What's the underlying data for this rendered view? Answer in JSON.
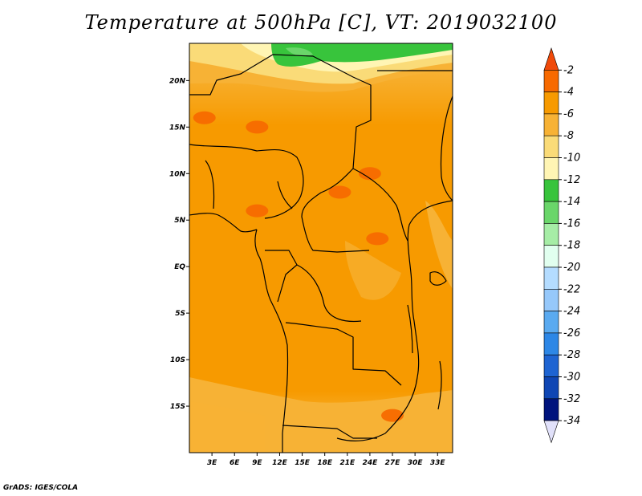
{
  "title": "Temperature at 500hPa [C], VT: 2019032100",
  "credit": "GrADS: IGES/COLA",
  "map": {
    "lat_range": [
      -20,
      24
    ],
    "lon_range": [
      0,
      35
    ],
    "lat_ticks": [
      {
        "value": 20,
        "label": "20N"
      },
      {
        "value": 15,
        "label": "15N"
      },
      {
        "value": 10,
        "label": "10N"
      },
      {
        "value": 5,
        "label": "5N"
      },
      {
        "value": 0,
        "label": "EQ"
      },
      {
        "value": -5,
        "label": "5S"
      },
      {
        "value": -10,
        "label": "10S"
      },
      {
        "value": -15,
        "label": "15S"
      }
    ],
    "lon_ticks": [
      {
        "value": 3,
        "label": "3E"
      },
      {
        "value": 6,
        "label": "6E"
      },
      {
        "value": 9,
        "label": "9E"
      },
      {
        "value": 12,
        "label": "12E"
      },
      {
        "value": 15,
        "label": "15E"
      },
      {
        "value": 18,
        "label": "18E"
      },
      {
        "value": 21,
        "label": "21E"
      },
      {
        "value": 24,
        "label": "24E"
      },
      {
        "value": 27,
        "label": "27E"
      },
      {
        "value": 30,
        "label": "30E"
      },
      {
        "value": 33,
        "label": "33E"
      }
    ]
  },
  "colorbar": {
    "labels": [
      "-2",
      "-4",
      "-6",
      "-8",
      "-10",
      "-12",
      "-14",
      "-16",
      "-18",
      "-20",
      "-22",
      "-24",
      "-26",
      "-28",
      "-30",
      "-32",
      "-34"
    ],
    "colors": [
      "#f04a0a",
      "#f76a00",
      "#f79a00",
      "#f7b235",
      "#fadb78",
      "#fff5b4",
      "#38c43c",
      "#6ad66a",
      "#a6eda6",
      "#e1ffef",
      "#b4dcff",
      "#96c8fa",
      "#5aaaf0",
      "#2d87e6",
      "#1e64d2",
      "#0f46b4",
      "#00147d",
      "#e1e1fa"
    ]
  },
  "chart_data": {
    "type": "heatmap",
    "title": "Temperature at 500hPa [C], VT: 2019032100",
    "x_ticks": [
      "3E",
      "6E",
      "9E",
      "12E",
      "15E",
      "18E",
      "21E",
      "24E",
      "27E",
      "30E",
      "33E"
    ],
    "y_ticks": [
      "20N",
      "15N",
      "10N",
      "5N",
      "EQ",
      "5S",
      "10S",
      "15S"
    ],
    "xlim": [
      0,
      35
    ],
    "ylim": [
      -20,
      24
    ],
    "color_levels": [
      -2,
      -4,
      -6,
      -8,
      -10,
      -12,
      -14,
      -16,
      -18,
      -20,
      -22,
      -24,
      -26,
      -28,
      -30,
      -32,
      -34
    ],
    "approx_field_by_latitude": [
      {
        "lat": 23,
        "temp_c": -13
      },
      {
        "lat": 21,
        "temp_c": -10
      },
      {
        "lat": 18,
        "temp_c": -7
      },
      {
        "lat": 15,
        "temp_c": -6
      },
      {
        "lat": 10,
        "temp_c": -5
      },
      {
        "lat": 5,
        "temp_c": -5
      },
      {
        "lat": 0,
        "temp_c": -5
      },
      {
        "lat": -5,
        "temp_c": -5
      },
      {
        "lat": -10,
        "temp_c": -5
      },
      {
        "lat": -15,
        "temp_c": -6
      },
      {
        "lat": -19,
        "temp_c": -7
      }
    ],
    "warm_spots": [
      {
        "lon": 9,
        "lat": 6,
        "temp_c": -3
      },
      {
        "lon": 24,
        "lat": 10,
        "temp_c": -3
      },
      {
        "lon": 20,
        "lat": 8,
        "temp_c": -3
      },
      {
        "lon": 9,
        "lat": 15,
        "temp_c": -3
      },
      {
        "lon": 2,
        "lat": 16,
        "temp_c": -3
      },
      {
        "lon": 25,
        "lat": 3,
        "temp_c": -3
      },
      {
        "lon": 27,
        "lat": -16,
        "temp_c": -3
      }
    ],
    "cold_spots": [
      {
        "lon": 13,
        "lat": 23,
        "temp_c": -13
      },
      {
        "lon": 21,
        "lat": 24,
        "temp_c": -13
      }
    ]
  }
}
